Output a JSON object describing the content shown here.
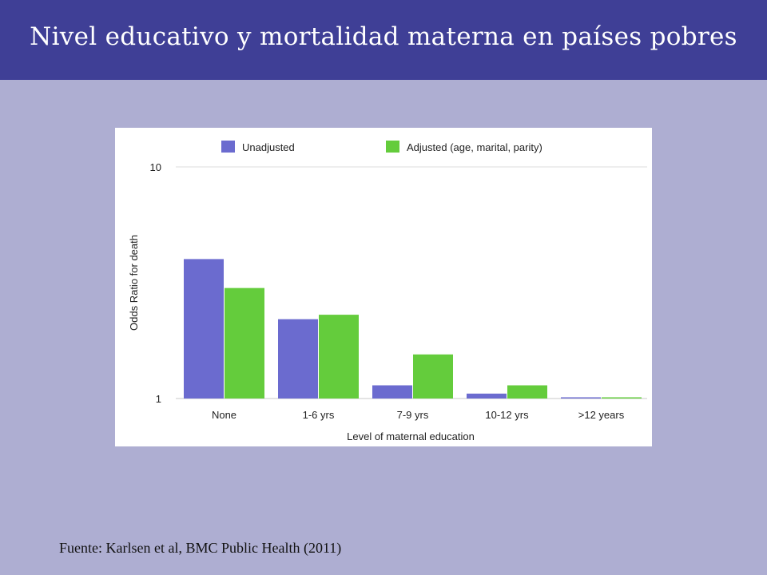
{
  "slide": {
    "title": "Nivel educativo y mortalidad materna en países pobres",
    "source": "Fuente: Karlsen et al, BMC Public Health (2011)"
  },
  "chart_data": {
    "type": "bar",
    "title": "",
    "xlabel": "Level of maternal education",
    "ylabel": "Odds Ratio for death",
    "y_scale": "log",
    "ylim": [
      1,
      10
    ],
    "y_ticks": [
      "1",
      "10"
    ],
    "grid": true,
    "legend_position": "top",
    "categories": [
      "None",
      "1-6 yrs",
      "7-9 yrs",
      "10-12 yrs",
      ">12 years"
    ],
    "series": [
      {
        "name": "Unadjusted",
        "color": "#6b6bcf",
        "values": [
          4.0,
          2.2,
          1.14,
          1.05,
          1.0
        ]
      },
      {
        "name": "Adjusted (age, marital, parity)",
        "color": "#64cc3c",
        "values": [
          3.0,
          2.3,
          1.55,
          1.14,
          1.0
        ]
      }
    ]
  }
}
